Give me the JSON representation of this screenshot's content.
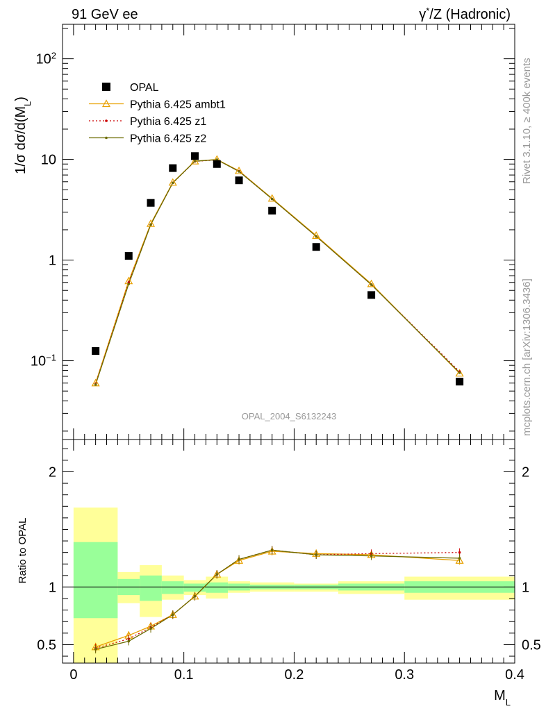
{
  "header": {
    "left": "91 GeV ee",
    "right_prefix": "γ",
    "right_sup": "*",
    "right_suffix": "/Z (Hadronic)"
  },
  "side_labels": {
    "rivet": "Rivet 3.1.10, ≥ 400k events",
    "mcplots": "mcplots.cern.ch [arXiv:1306.3436]"
  },
  "watermark": "OPAL_2004_S6132243",
  "colors": {
    "data": "#000000",
    "ambt1": "#e8a000",
    "z1": "#cc0000",
    "z2": "#6b6b00",
    "band_inner": "#99ff99",
    "band_outer": "#ffff99"
  },
  "chart_data": [
    {
      "type": "scatter",
      "panel": "main",
      "ylabel_main": "1/σ dσ/d(M",
      "ylabel_sub": "L",
      "ylabel_close": ")",
      "yscale": "log",
      "ylim": [
        0.0165,
        220
      ],
      "xlim": [
        -0.01,
        0.4
      ],
      "y_ticks": [
        {
          "v": 0.1,
          "base": "10",
          "exp": "−1"
        },
        {
          "v": 1,
          "base": "1",
          "exp": ""
        },
        {
          "v": 10,
          "base": "10",
          "exp": ""
        },
        {
          "v": 100,
          "base": "10",
          "exp": "2"
        }
      ],
      "legend_position": "top-left",
      "series": [
        {
          "key": "data",
          "name": "OPAL",
          "marker": "square",
          "x": [
            0.02,
            0.05,
            0.07,
            0.09,
            0.11,
            0.13,
            0.15,
            0.18,
            0.22,
            0.27,
            0.35
          ],
          "y": [
            0.125,
            1.1,
            3.7,
            8.2,
            10.8,
            9.0,
            6.2,
            3.1,
            1.35,
            0.45,
            0.062
          ]
        },
        {
          "key": "ambt1",
          "name": "Pythia 6.425 ambt1",
          "marker": "triangle",
          "x": [
            0.02,
            0.05,
            0.07,
            0.09,
            0.11,
            0.13,
            0.15,
            0.18,
            0.22,
            0.27,
            0.35
          ],
          "y": [
            0.06,
            0.62,
            2.3,
            5.9,
            9.6,
            10.0,
            7.7,
            4.1,
            1.75,
            0.58,
            0.075
          ]
        },
        {
          "key": "z1",
          "name": "Pythia 6.425 z1",
          "marker": "dot",
          "x": [
            0.02,
            0.05,
            0.07,
            0.09,
            0.11,
            0.13,
            0.15,
            0.18,
            0.22,
            0.27,
            0.35
          ],
          "y": [
            0.059,
            0.6,
            2.25,
            5.85,
            9.55,
            9.9,
            7.65,
            4.05,
            1.72,
            0.57,
            0.078
          ]
        },
        {
          "key": "z2",
          "name": "Pythia 6.425 z2",
          "marker": "dot",
          "x": [
            0.02,
            0.05,
            0.07,
            0.09,
            0.11,
            0.13,
            0.15,
            0.18,
            0.22,
            0.27,
            0.35
          ],
          "y": [
            0.058,
            0.58,
            2.25,
            5.85,
            9.6,
            9.95,
            7.6,
            4.05,
            1.72,
            0.57,
            0.076
          ]
        }
      ]
    },
    {
      "type": "line",
      "panel": "ratio",
      "ylabel": "Ratio to OPAL",
      "xlabel_main": "M",
      "xlabel_sub": "L",
      "xlim": [
        -0.01,
        0.4
      ],
      "ylim": [
        0.34,
        2.28
      ],
      "x_ticks": [
        {
          "v": 0,
          "label": "0"
        },
        {
          "v": 0.1,
          "label": "0.1"
        },
        {
          "v": 0.2,
          "label": "0.2"
        },
        {
          "v": 0.3,
          "label": "0.3"
        },
        {
          "v": 0.4,
          "label": "0.4"
        }
      ],
      "y_ticks": [
        {
          "v": 0.5,
          "label": "0.5"
        },
        {
          "v": 1,
          "label": "1"
        },
        {
          "v": 2,
          "label": "2"
        }
      ],
      "bands": [
        {
          "x0": 0.0,
          "x1": 0.04,
          "inner": [
            0.73,
            1.39
          ],
          "outer": [
            0.0,
            1.69
          ]
        },
        {
          "x0": 0.04,
          "x1": 0.06,
          "inner": [
            0.93,
            1.07
          ],
          "outer": [
            0.86,
            1.13
          ]
        },
        {
          "x0": 0.06,
          "x1": 0.08,
          "inner": [
            0.88,
            1.1
          ],
          "outer": [
            0.74,
            1.19
          ]
        },
        {
          "x0": 0.08,
          "x1": 0.1,
          "inner": [
            0.94,
            1.05
          ],
          "outer": [
            0.89,
            1.1
          ]
        },
        {
          "x0": 0.1,
          "x1": 0.12,
          "inner": [
            0.96,
            1.03
          ],
          "outer": [
            0.93,
            1.06
          ]
        },
        {
          "x0": 0.12,
          "x1": 0.14,
          "inner": [
            0.95,
            1.04
          ],
          "outer": [
            0.9,
            1.09
          ]
        },
        {
          "x0": 0.14,
          "x1": 0.16,
          "inner": [
            0.97,
            1.03
          ],
          "outer": [
            0.95,
            1.05
          ]
        },
        {
          "x0": 0.16,
          "x1": 0.2,
          "inner": [
            0.98,
            1.02
          ],
          "outer": [
            0.96,
            1.04
          ]
        },
        {
          "x0": 0.2,
          "x1": 0.24,
          "inner": [
            0.98,
            1.02
          ],
          "outer": [
            0.96,
            1.03
          ]
        },
        {
          "x0": 0.24,
          "x1": 0.3,
          "inner": [
            0.97,
            1.03
          ],
          "outer": [
            0.94,
            1.05
          ]
        },
        {
          "x0": 0.3,
          "x1": 0.4,
          "inner": [
            0.95,
            1.05
          ],
          "outer": [
            0.89,
            1.09
          ]
        }
      ],
      "series": [
        {
          "key": "ambt1",
          "marker": "triangle",
          "x": [
            0.02,
            0.05,
            0.07,
            0.09,
            0.11,
            0.13,
            0.15,
            0.18,
            0.22,
            0.27,
            0.35
          ],
          "y": [
            0.48,
            0.58,
            0.66,
            0.76,
            0.92,
            1.11,
            1.23,
            1.31,
            1.29,
            1.28,
            1.23
          ]
        },
        {
          "key": "z1",
          "marker": "dot",
          "x": [
            0.02,
            0.05,
            0.07,
            0.09,
            0.11,
            0.13,
            0.15,
            0.18,
            0.22,
            0.27,
            0.35
          ],
          "y": [
            0.47,
            0.55,
            0.65,
            0.76,
            0.92,
            1.11,
            1.24,
            1.32,
            1.28,
            1.29,
            1.3
          ]
        },
        {
          "key": "z2",
          "marker": "dot",
          "x": [
            0.02,
            0.05,
            0.07,
            0.09,
            0.11,
            0.13,
            0.15,
            0.18,
            0.22,
            0.27,
            0.35
          ],
          "y": [
            0.46,
            0.53,
            0.64,
            0.76,
            0.92,
            1.11,
            1.24,
            1.32,
            1.28,
            1.27,
            1.25
          ]
        }
      ]
    }
  ]
}
